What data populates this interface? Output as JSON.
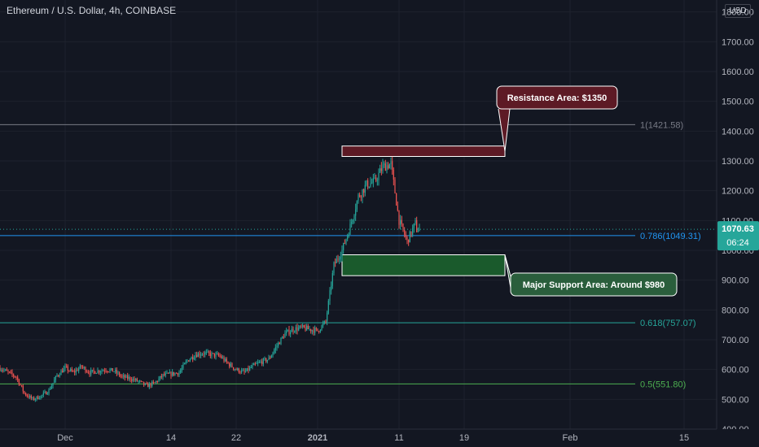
{
  "header": {
    "title": "Ethereum / U.S. Dollar, 4h, COINBASE",
    "currency": "USD"
  },
  "price_tag": {
    "price": "1070.63",
    "countdown": "06:24"
  },
  "colors": {
    "background": "#131722",
    "up": "#26a69a",
    "down": "#ef5350",
    "fib_1": "#787b86",
    "fib_0786": "#2196f3",
    "fib_0618": "#26a69a",
    "fib_05": "#4caf50",
    "resistance_fill": "#5d1a25",
    "support_fill": "#1a5a2c",
    "axis_text": "#b2b5be"
  },
  "chart_data": {
    "type": "candlestick",
    "title": "Ethereum / U.S. Dollar, 4h, COINBASE",
    "y_unit": "USD",
    "ylim": [
      400,
      1840
    ],
    "y_ticks": [
      400,
      500,
      600,
      700,
      800,
      900,
      1000,
      1100,
      1200,
      1300,
      1400,
      1500,
      1600,
      1700,
      1800
    ],
    "y_tick_labels": [
      "400.00",
      "500.00",
      "600.00",
      "700.00",
      "800.00",
      "900.00",
      "1000.00",
      "1100.00",
      "1200.00",
      "1300.00",
      "1400.00",
      "1500.00",
      "1600.00",
      "1700.00",
      "1800.00"
    ],
    "xlim": [
      "2020-11-23",
      "2021-02-19"
    ],
    "x_ticks": [
      {
        "date": "2020-12-01",
        "label": "Dec"
      },
      {
        "date": "2020-12-14",
        "label": "14"
      },
      {
        "date": "2020-12-22",
        "label": "22"
      },
      {
        "date": "2021-01-01",
        "label": "2021"
      },
      {
        "date": "2021-01-11",
        "label": "11"
      },
      {
        "date": "2021-01-19",
        "label": "19"
      },
      {
        "date": "2021-02-01",
        "label": "Feb"
      },
      {
        "date": "2021-02-15",
        "label": "15"
      }
    ],
    "price_path": [
      [
        "2020-11-23",
        605
      ],
      [
        "2020-11-24",
        590
      ],
      [
        "2020-11-25",
        575
      ],
      [
        "2020-11-26",
        520
      ],
      [
        "2020-11-27",
        500
      ],
      [
        "2020-11-28",
        510
      ],
      [
        "2020-11-29",
        530
      ],
      [
        "2020-11-30",
        580
      ],
      [
        "2020-12-01",
        605
      ],
      [
        "2020-12-02",
        590
      ],
      [
        "2020-12-03",
        610
      ],
      [
        "2020-12-04",
        590
      ],
      [
        "2020-12-05",
        595
      ],
      [
        "2020-12-06",
        600
      ],
      [
        "2020-12-07",
        595
      ],
      [
        "2020-12-08",
        575
      ],
      [
        "2020-12-09",
        570
      ],
      [
        "2020-12-10",
        560
      ],
      [
        "2020-12-11",
        545
      ],
      [
        "2020-12-12",
        555
      ],
      [
        "2020-12-13",
        580
      ],
      [
        "2020-12-14",
        585
      ],
      [
        "2020-12-15",
        590
      ],
      [
        "2020-12-16",
        630
      ],
      [
        "2020-12-17",
        650
      ],
      [
        "2020-12-18",
        655
      ],
      [
        "2020-12-19",
        650
      ],
      [
        "2020-12-20",
        645
      ],
      [
        "2020-12-21",
        620
      ],
      [
        "2020-12-22",
        600
      ],
      [
        "2020-12-23",
        590
      ],
      [
        "2020-12-24",
        610
      ],
      [
        "2020-12-25",
        625
      ],
      [
        "2020-12-26",
        635
      ],
      [
        "2020-12-27",
        680
      ],
      [
        "2020-12-28",
        720
      ],
      [
        "2020-12-29",
        735
      ],
      [
        "2020-12-30",
        740
      ],
      [
        "2020-12-31",
        735
      ],
      [
        "2021-01-01",
        730
      ],
      [
        "2021-01-02",
        760
      ],
      [
        "2021-01-03",
        950
      ],
      [
        "2021-01-04",
        1000
      ],
      [
        "2021-01-05",
        1080
      ],
      [
        "2021-01-06",
        1180
      ],
      [
        "2021-01-07",
        1220
      ],
      [
        "2021-01-08",
        1230
      ],
      [
        "2021-01-09",
        1280
      ],
      [
        "2021-01-10",
        1290
      ],
      [
        "2021-01-11",
        1100
      ],
      [
        "2021-01-12",
        1030
      ],
      [
        "2021-01-13",
        1090
      ],
      [
        "2021-01-13",
        1070
      ]
    ],
    "fibonacci_levels": [
      {
        "level": "1",
        "price": 1421.58,
        "label": "1(1421.58)"
      },
      {
        "level": "0.786",
        "price": 1049.31,
        "label": "0.786(1049.31)"
      },
      {
        "level": "0.618",
        "price": 757.07,
        "label": "0.618(757.07)"
      },
      {
        "level": "0.5",
        "price": 551.8,
        "label": "0.5(551.80)"
      }
    ],
    "zones": [
      {
        "name": "resistance",
        "label": "Resistance Area: $1350",
        "price_low": 1315,
        "price_high": 1350,
        "date_start": "2021-01-04",
        "date_end": "2021-01-24"
      },
      {
        "name": "support",
        "label": "Major Support Area: Around $980",
        "price_low": 915,
        "price_high": 985,
        "date_start": "2021-01-04",
        "date_end": "2021-01-24"
      }
    ],
    "current_price": 1070.63,
    "grid": true
  }
}
